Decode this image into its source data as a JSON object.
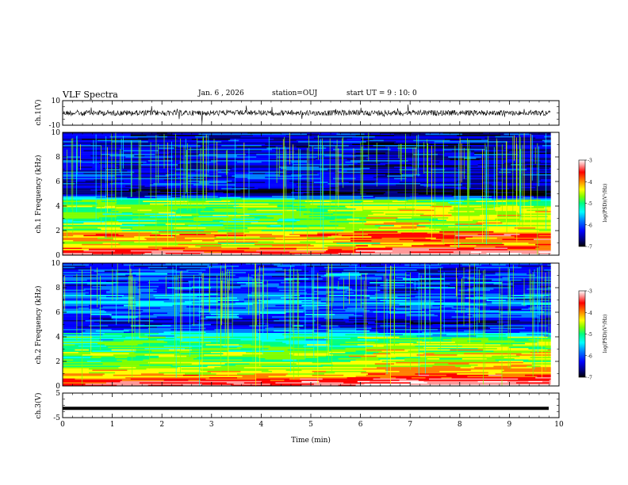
{
  "header": {
    "title": "VLF Spectra",
    "date": "Jan. 6 , 2026",
    "station": "station=OUJ",
    "start_time": "start UT = 9 : 10: 0"
  },
  "panels": {
    "ch1_wave": {
      "ylabel": "ch.1(V)",
      "ticks": [
        "10",
        "-10"
      ]
    },
    "ch1_spec": {
      "ylabel": "ch.1 Frequency (kHz)"
    },
    "ch2_spec": {
      "ylabel": "ch.2 Frequency (kHz)"
    },
    "ch3_wave": {
      "ylabel": "ch.3(V)",
      "ticks": [
        "5",
        "-5"
      ]
    }
  },
  "colorbar": {
    "label": "log(PSD)(V²/Hz)",
    "ticks": [
      "-3",
      "-4",
      "-5",
      "-6",
      "-7"
    ],
    "colors": [
      "#000000",
      "#000080",
      "#0000ff",
      "#0080ff",
      "#00ffff",
      "#00ff80",
      "#80ff00",
      "#ffff00",
      "#ff8000",
      "#ff0000",
      "#ff9999",
      "#ffffff"
    ]
  },
  "chart_data": {
    "type": "heatmap",
    "xlabel": "Time (min)",
    "xlim": [
      0,
      10
    ],
    "x_ticks": [
      "0",
      "1",
      "2",
      "3",
      "4",
      "5",
      "6",
      "7",
      "8",
      "9",
      "10"
    ],
    "ylabel": "Frequency (kHz)",
    "ylim": [
      0,
      10
    ],
    "y_ticks": [
      "0",
      "2",
      "4",
      "6",
      "8",
      "10"
    ],
    "zlim": [
      -7,
      -3
    ],
    "data_end_min": 9.83,
    "ch1_voltage_range": [
      -10,
      10
    ],
    "ch3_voltage_range": [
      -5,
      5
    ],
    "ch3_level": -1.2,
    "ch1_spectrogram_bands": [
      {
        "freq_khz": 0.2,
        "log_psd": -3.6
      },
      {
        "freq_khz": 0.6,
        "log_psd": -4.2
      },
      {
        "freq_khz": 1.0,
        "log_psd": -4.6
      },
      {
        "freq_khz": 1.6,
        "log_psd": -4.0
      },
      {
        "freq_khz": 2.0,
        "log_psd": -4.9
      },
      {
        "freq_khz": 3.0,
        "log_psd": -5.1
      },
      {
        "freq_khz": 4.4,
        "log_psd": -4.9
      },
      {
        "freq_khz": 5.0,
        "log_psd": -6.9
      },
      {
        "freq_khz": 6.0,
        "log_psd": -6.2
      },
      {
        "freq_khz": 8.0,
        "log_psd": -6.4
      }
    ],
    "ch2_spectrogram_bands": [
      {
        "freq_khz": 0.2,
        "log_psd": -3.6
      },
      {
        "freq_khz": 1.0,
        "log_psd": -4.4
      },
      {
        "freq_khz": 2.0,
        "log_psd": -4.9
      },
      {
        "freq_khz": 3.3,
        "log_psd": -5.0
      },
      {
        "freq_khz": 4.0,
        "log_psd": -5.4
      },
      {
        "freq_khz": 5.0,
        "log_psd": -6.4
      },
      {
        "freq_khz": 6.6,
        "log_psd": -5.8
      },
      {
        "freq_khz": 8.0,
        "log_psd": -6.1
      }
    ]
  }
}
